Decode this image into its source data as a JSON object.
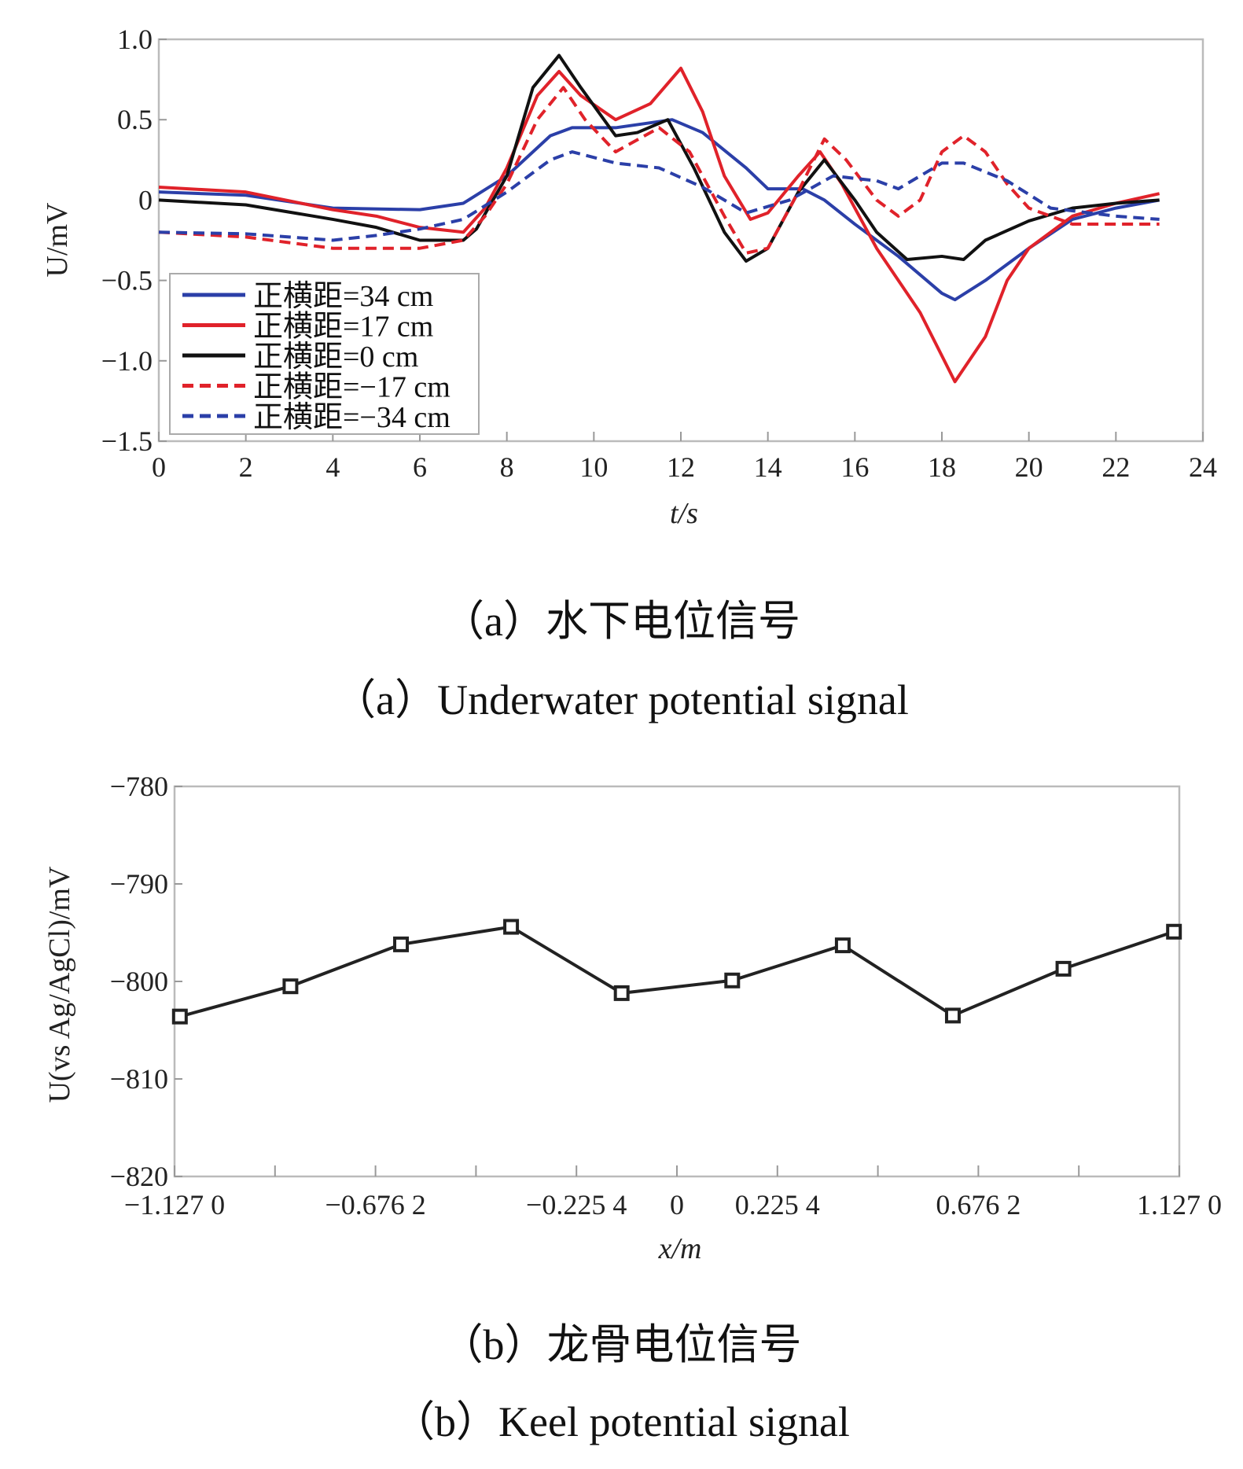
{
  "chart_data": [
    {
      "type": "line",
      "title": "",
      "xlabel": "t/s",
      "ylabel": "U/mV",
      "xlim": [
        0,
        24
      ],
      "ylim": [
        -1.5,
        1.0
      ],
      "xticks": [
        "0",
        "2",
        "4",
        "6",
        "8",
        "10",
        "12",
        "14",
        "16",
        "18",
        "20",
        "22",
        "24"
      ],
      "yticks": [
        "1.0",
        "0.5",
        "0",
        "−0.5",
        "−1.0",
        "−1.5"
      ],
      "legend_position": "bottom-left",
      "caption_cn": "（a）水下电位信号",
      "caption_en": "（a）Underwater potential signal",
      "series": [
        {
          "name": "正横距=34 cm",
          "color": "#2b3fa8",
          "dash": false,
          "x": [
            0,
            2,
            4,
            6,
            7,
            8,
            9,
            9.5,
            10.5,
            11.8,
            12.5,
            13.5,
            14,
            14.8,
            15.3,
            16,
            17,
            18,
            18.3,
            19,
            20,
            21,
            22,
            23
          ],
          "y": [
            0.05,
            0.03,
            -0.05,
            -0.06,
            -0.02,
            0.15,
            0.4,
            0.45,
            0.45,
            0.5,
            0.42,
            0.2,
            0.07,
            0.07,
            0.0,
            -0.15,
            -0.35,
            -0.58,
            -0.62,
            -0.5,
            -0.3,
            -0.12,
            -0.05,
            0.0
          ]
        },
        {
          "name": "正横距=17 cm",
          "color": "#e0222a",
          "dash": false,
          "x": [
            0,
            2,
            4,
            5,
            6,
            7,
            7.5,
            8,
            8.7,
            9.2,
            9.7,
            10.5,
            11.3,
            12,
            12.5,
            13,
            13.6,
            14,
            14.7,
            15.2,
            15.7,
            16.5,
            17.5,
            18.3,
            19,
            19.5,
            20,
            21,
            22,
            23
          ],
          "y": [
            0.08,
            0.05,
            -0.06,
            -0.1,
            -0.17,
            -0.2,
            -0.05,
            0.2,
            0.65,
            0.8,
            0.65,
            0.5,
            0.6,
            0.82,
            0.55,
            0.15,
            -0.12,
            -0.08,
            0.15,
            0.3,
            0.1,
            -0.3,
            -0.7,
            -1.13,
            -0.85,
            -0.5,
            -0.3,
            -0.1,
            -0.02,
            0.04
          ]
        },
        {
          "name": "正横距=0 cm",
          "color": "#111111",
          "dash": false,
          "x": [
            0,
            2,
            4,
            5,
            6,
            7,
            7.3,
            8,
            8.6,
            9.2,
            9.7,
            10.5,
            11,
            11.7,
            12.3,
            13,
            13.5,
            14,
            14.7,
            15.3,
            16,
            16.5,
            17.2,
            18,
            18.5,
            19,
            20,
            21,
            22,
            23
          ],
          "y": [
            0.0,
            -0.03,
            -0.12,
            -0.17,
            -0.25,
            -0.25,
            -0.18,
            0.15,
            0.7,
            0.9,
            0.7,
            0.4,
            0.42,
            0.5,
            0.2,
            -0.2,
            -0.38,
            -0.3,
            0.05,
            0.25,
            0.0,
            -0.2,
            -0.37,
            -0.35,
            -0.37,
            -0.25,
            -0.13,
            -0.05,
            -0.02,
            0.0
          ]
        },
        {
          "name": "正横距=−17 cm",
          "color": "#e0222a",
          "dash": true,
          "x": [
            0,
            2,
            4,
            5,
            6,
            7,
            7.5,
            8,
            8.7,
            9.3,
            9.8,
            10.5,
            11.5,
            12.2,
            13,
            13.5,
            14,
            14.6,
            15.3,
            15.8,
            16.5,
            17,
            17.5,
            18,
            18.5,
            19,
            19.5,
            20,
            21,
            22,
            23
          ],
          "y": [
            -0.2,
            -0.23,
            -0.3,
            -0.3,
            -0.3,
            -0.25,
            -0.1,
            0.1,
            0.5,
            0.7,
            0.5,
            0.3,
            0.45,
            0.3,
            -0.1,
            -0.33,
            -0.3,
            0.0,
            0.38,
            0.25,
            0.0,
            -0.1,
            0.0,
            0.3,
            0.4,
            0.3,
            0.1,
            -0.05,
            -0.15,
            -0.15,
            -0.15
          ]
        },
        {
          "name": "正横距=−34 cm",
          "color": "#2b3fa8",
          "dash": true,
          "x": [
            0,
            2,
            4,
            5,
            6,
            7,
            8,
            9,
            9.5,
            10.5,
            11.5,
            12.5,
            13.5,
            14.5,
            15.5,
            16.5,
            17,
            18,
            18.5,
            19.5,
            20.5,
            22,
            23
          ],
          "y": [
            -0.2,
            -0.21,
            -0.25,
            -0.22,
            -0.18,
            -0.12,
            0.05,
            0.25,
            0.3,
            0.23,
            0.2,
            0.08,
            -0.08,
            0.0,
            0.15,
            0.12,
            0.07,
            0.23,
            0.23,
            0.12,
            -0.05,
            -0.1,
            -0.12
          ]
        }
      ]
    },
    {
      "type": "line",
      "title": "",
      "xlabel": "x/m",
      "ylabel": "U(vs Ag/AgCl)/mV",
      "xlim": [
        -1.127,
        1.127
      ],
      "ylim": [
        -820,
        -780
      ],
      "xtick_values": [
        -1.127,
        -0.9016,
        -0.6762,
        -0.4508,
        -0.2254,
        0,
        0.2254,
        0.4508,
        0.6762,
        0.9016,
        1.127
      ],
      "xtick_labels": [
        "−1.127 0",
        "",
        "−0.676 2",
        "",
        "−0.225 4",
        "0",
        "0.225 4",
        "",
        "0.676 2",
        "",
        "1.127 0"
      ],
      "yticks": [
        "−780",
        "−790",
        "−800",
        "−810",
        "−820"
      ],
      "caption_cn": "（b）龙骨电位信号",
      "caption_en": "（b）Keel potential signal",
      "series": [
        {
          "name": "keel",
          "color": "#222222",
          "marker": "square",
          "x": [
            -1.115,
            -0.867,
            -0.619,
            -0.372,
            -0.124,
            0.124,
            0.372,
            0.619,
            0.867,
            1.115
          ],
          "y": [
            -803.6,
            -800.5,
            -796.2,
            -794.4,
            -801.2,
            -799.9,
            -796.3,
            -803.5,
            -798.7,
            -794.9
          ]
        }
      ]
    }
  ]
}
